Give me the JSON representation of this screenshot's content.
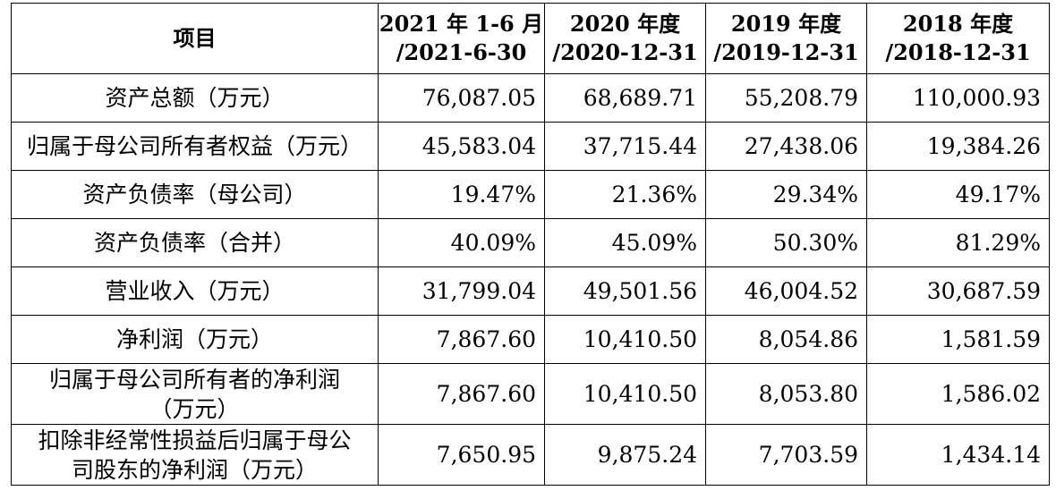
{
  "headers": [
    {
      "line1": "项目",
      "line2": ""
    },
    {
      "line1": "2021 年 1-6 月",
      "line2": "/2021-6-30"
    },
    {
      "line1": "2020 年度",
      "line2": "/2020-12-31"
    },
    {
      "line1": "2019 年度",
      "line2": "/2019-12-31"
    },
    {
      "line1": "2018 年度",
      "line2": "/2018-12-31"
    }
  ],
  "rows": [
    {
      "label1": "资产总额（万元）",
      "label2": "",
      "values": [
        "76,087.05",
        "68,689.71",
        "55,208.79",
        "110,000.93"
      ]
    },
    {
      "label1": "归属于母公司所有者权益（万元）",
      "label2": "",
      "values": [
        "45,583.04",
        "37,715.44",
        "27,438.06",
        "19,384.26"
      ]
    },
    {
      "label1": "资产负债率（母公司）",
      "label2": "",
      "values": [
        "19.47%",
        "21.36%",
        "29.34%",
        "49.17%"
      ]
    },
    {
      "label1": "资产负债率（合并）",
      "label2": "",
      "values": [
        "40.09%",
        "45.09%",
        "50.30%",
        "81.29%"
      ]
    },
    {
      "label1": "营业收入（万元）",
      "label2": "",
      "values": [
        "31,799.04",
        "49,501.56",
        "46,004.52",
        "30,687.59"
      ]
    },
    {
      "label1": "净利润（万元）",
      "label2": "",
      "values": [
        "7,867.60",
        "10,410.50",
        "8,054.86",
        "1,581.59"
      ]
    },
    {
      "label1": "归属于母公司所有者的净利润",
      "label2": "（万元）",
      "values": [
        "7,867.60",
        "10,410.50",
        "8,053.80",
        "1,586.02"
      ]
    },
    {
      "label1": "扣除非经常性损益后归属于母公",
      "label2": "司股东的净利润（万元）",
      "values": [
        "7,650.95",
        "9,875.24",
        "7,703.59",
        "1,434.14"
      ]
    }
  ]
}
